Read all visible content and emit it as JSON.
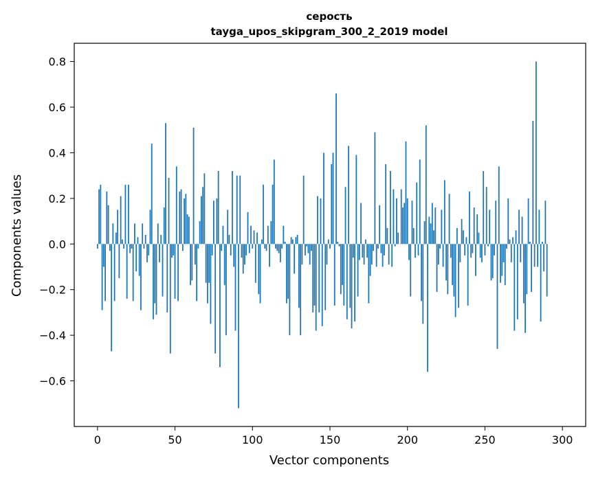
{
  "chart_data": {
    "type": "bar",
    "title": "серость",
    "subtitle": "tayga_upos_skipgram_300_2_2019 model",
    "xlabel": "Vector components",
    "ylabel": "Components values",
    "xlim": [
      -15,
      315
    ],
    "ylim": [
      -0.8,
      0.88
    ],
    "xticks": [
      0,
      50,
      100,
      150,
      200,
      250,
      300
    ],
    "xtick_labels": [
      "0",
      "50",
      "100",
      "150",
      "200",
      "250",
      "300"
    ],
    "yticks": [
      -0.6,
      -0.4,
      -0.2,
      0.0,
      0.2,
      0.4,
      0.6,
      0.8
    ],
    "ytick_labels": [
      "−0.6",
      "−0.4",
      "−0.2",
      "0.0",
      "0.2",
      "0.4",
      "0.6",
      "0.8"
    ],
    "grid": false,
    "bar_color": "#1f77b4",
    "values": [
      -0.02,
      0.24,
      0.26,
      -0.29,
      -0.1,
      -0.25,
      0.23,
      0.17,
      -0.03,
      -0.47,
      0.09,
      -0.25,
      0.05,
      0.15,
      -0.15,
      0.21,
      0.02,
      -0.02,
      0.26,
      -0.24,
      0.26,
      -0.04,
      -0.02,
      -0.25,
      0.09,
      -0.12,
      0.03,
      -0.14,
      -0.29,
      0.09,
      -0.02,
      0.04,
      -0.08,
      -0.05,
      0.15,
      0.44,
      -0.33,
      -0.26,
      -0.31,
      0.09,
      -0.08,
      0.04,
      -0.23,
      0.16,
      0.53,
      -0.3,
      0.29,
      -0.48,
      -0.06,
      -0.05,
      -0.24,
      0.34,
      -0.25,
      0.23,
      0.24,
      -0.03,
      0.2,
      0.22,
      0.13,
      0.12,
      -0.18,
      -0.16,
      0.51,
      -0.09,
      -0.25,
      -0.02,
      0.1,
      0.21,
      0.25,
      0.31,
      -0.17,
      -0.26,
      -0.17,
      -0.35,
      -0.05,
      0.19,
      -0.48,
      0.2,
      0.32,
      -0.54,
      -0.03,
      0.08,
      -0.18,
      -0.4,
      0.15,
      0.04,
      -0.05,
      0.32,
      -0.1,
      -0.38,
      0.3,
      -0.72,
      0.3,
      -0.06,
      -0.13,
      -0.09,
      -0.05,
      0.14,
      -0.04,
      0.08,
      -0.02,
      0.06,
      -0.17,
      0.05,
      -0.22,
      -0.26,
      0.02,
      0.26,
      -0.02,
      -0.03,
      0.08,
      -0.1,
      0.1,
      0.26,
      0.37,
      -0.02,
      -0.03,
      -0.04,
      -0.08,
      -0.02,
      0.08,
      0.01,
      -0.26,
      -0.24,
      -0.4,
      0.03,
      0.02,
      -0.13,
      0.03,
      0.04,
      -0.28,
      -0.4,
      -0.09,
      0.3,
      -0.05,
      -0.01,
      -0.04,
      -0.09,
      -0.03,
      -0.3,
      -0.27,
      -0.38,
      0.21,
      -0.3,
      0.2,
      -0.36,
      0.4,
      -0.29,
      -0.09,
      0.02,
      -0.02,
      0.35,
      0.4,
      -0.27,
      0.66,
      0.01,
      -0.01,
      -0.22,
      -0.18,
      -0.27,
      0.25,
      -0.33,
      0.43,
      -0.28,
      -0.37,
      -0.06,
      -0.34,
      0.39,
      -0.23,
      -0.07,
      0.18,
      -0.06,
      -0.09,
      0.02,
      -0.06,
      -0.26,
      -0.14,
      -0.09,
      -0.03,
      0.49,
      -0.1,
      -0.02,
      0.17,
      -0.04,
      -0.1,
      -0.05,
      0.35,
      0.07,
      -0.09,
      0.32,
      -0.1,
      0.24,
      -0.01,
      0.2,
      0.05,
      0.0,
      0.24,
      0.16,
      0.18,
      0.45,
      0.2,
      -0.07,
      -0.23,
      0.19,
      0.07,
      -0.06,
      0.27,
      -0.05,
      0.37,
      -0.25,
      -0.35,
      0.1,
      0.52,
      -0.56,
      0.12,
      0.09,
      0.18,
      0.06,
      0.16,
      -0.21,
      -0.09,
      -0.02,
      0.15,
      -0.1,
      0.28,
      -0.16,
      -0.22,
      0.22,
      -0.06,
      -0.18,
      -0.23,
      -0.32,
      0.07,
      -0.28,
      -0.08,
      0.11,
      0.06,
      -0.05,
      0.03,
      -0.27,
      0.23,
      -0.06,
      -0.04,
      0.16,
      -0.14,
      0.13,
      0.05,
      -0.06,
      -0.08,
      0.32,
      -0.05,
      0.25,
      -0.01,
      0.15,
      -0.16,
      -0.15,
      -0.05,
      0.19,
      -0.46,
      0.34,
      -0.17,
      -0.14,
      -0.08,
      -0.18,
      -0.02,
      0.2,
      0.02,
      -0.08,
      0.03,
      -0.38,
      0.06,
      -0.33,
      0.15,
      -0.08,
      0.12,
      -0.26,
      -0.39,
      -0.22,
      0.2,
      0.01,
      -0.21,
      0.54,
      -0.1,
      0.8,
      -0.1,
      0.15,
      -0.34,
      0.01,
      -0.12,
      0.19,
      -0.23
    ]
  }
}
